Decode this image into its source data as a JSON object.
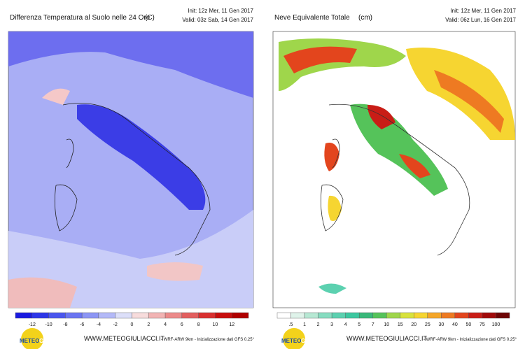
{
  "panels": [
    {
      "title": "Differenza Temperatura al Suolo nelle 24 Ore",
      "unit": "(C)",
      "init": "Init: 12z Mer, 11 Gen 2017",
      "valid": "Valid: 03z Sab, 14 Gen 2017",
      "scale_labels": [
        "-12",
        "-10",
        "-8",
        "-6",
        "-4",
        "-2",
        "0",
        "2",
        "4",
        "6",
        "8",
        "10",
        "12"
      ],
      "scale_colors": [
        "#1a1ae0",
        "#2d36e8",
        "#4a55ee",
        "#6a74f2",
        "#8c95f5",
        "#b3b9f8",
        "#dcdff9",
        "#f7dcdc",
        "#f2b4b4",
        "#ec8a8a",
        "#e35f5f",
        "#d93030",
        "#c80e0e",
        "#b00000"
      ]
    },
    {
      "title": "Neve Equivalente Totale",
      "unit": "(cm)",
      "init": "Init: 12z Mer, 11 Gen 2017",
      "valid": "Valid: 06z Lun, 16 Gen 2017",
      "scale_labels": [
        ".5",
        "1",
        "2",
        "3",
        "4",
        "5",
        "7",
        "10",
        "15",
        "20",
        "25",
        "30",
        "40",
        "50",
        "75",
        "100"
      ],
      "scale_colors": [
        "#ffffff",
        "#dff3ea",
        "#b6e8d3",
        "#86dcc0",
        "#5cd1b0",
        "#3cc79f",
        "#39b87a",
        "#55c35a",
        "#9fd64b",
        "#d8e23c",
        "#f6d531",
        "#f5a628",
        "#ee7a22",
        "#e3451d",
        "#c91d16",
        "#a10a0a",
        "#6e0505"
      ]
    }
  ],
  "footer": {
    "logo_a": "METEO",
    "logo_b": "GIULIACCI",
    "site": "WWW.METEOGIULIACCI.IT",
    "model": "- WRF-ARW 9km - Inizializzazione dati GFS 0.25°"
  }
}
